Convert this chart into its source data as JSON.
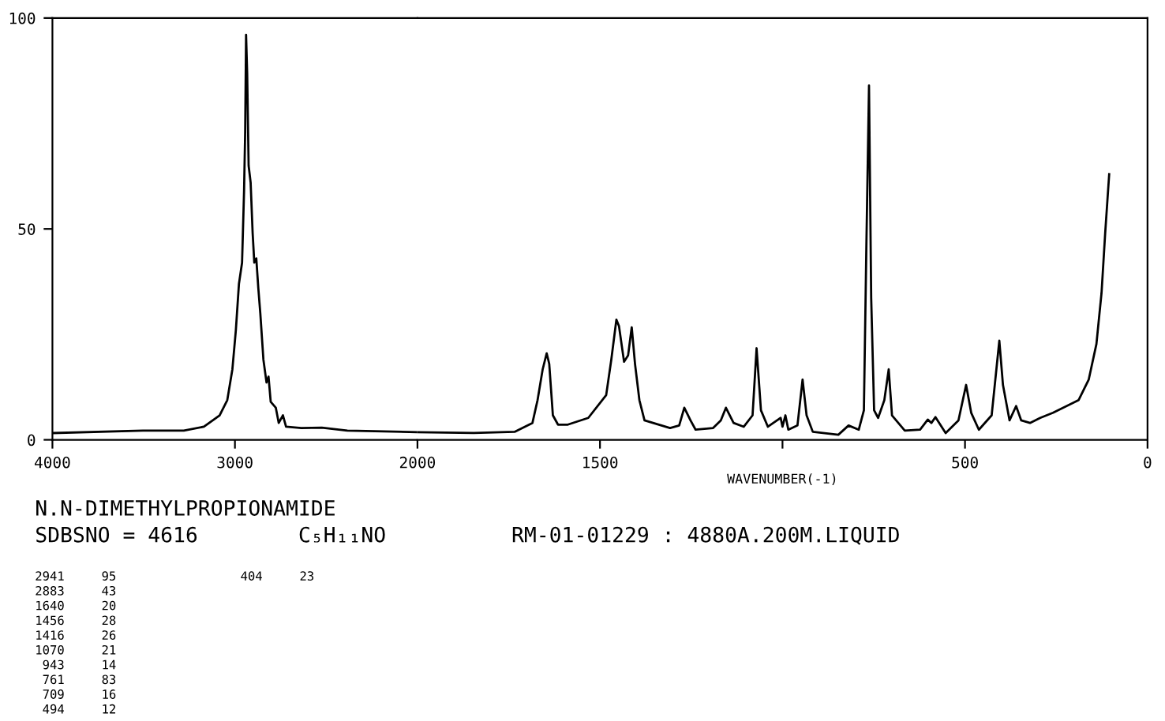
{
  "chart_data": [
    {
      "type": "line",
      "title": "N.N-DIMETHYLPROPIONAMIDE",
      "subtitle": "SDBSNO = 4616        C₅H₁₁NO          RM-01-01229 : 4880A.200M.LIQUID",
      "xlim": [
        4000,
        2000
      ],
      "xticks": [
        4000,
        3000,
        2000
      ],
      "ylim": [
        0,
        100
      ],
      "yticks": [
        0,
        50,
        100
      ],
      "grid": false,
      "legend": false,
      "marker": "none",
      "line_style": "solid",
      "annotations": [
        "2941     95",
        "2883     43",
        "1640     20",
        "1456     28",
        "1416     26",
        "1070     21",
        " 943     14",
        " 761     83",
        " 709     16",
        " 494     12",
        " 404     23"
      ],
      "series": [
        {
          "color": "#000000",
          "x": [
            4000,
            3504,
            3280,
            3170,
            3084,
            3042,
            3014,
            2995,
            2978,
            2961,
            2950,
            2944,
            2939,
            2933,
            2925,
            2914,
            2903,
            2894,
            2883,
            2872,
            2861,
            2844,
            2827,
            2816,
            2804,
            2776,
            2760,
            2737,
            2720,
            2636,
            2524,
            2384,
            2000
          ],
          "values": [
            1.6,
            2.2,
            2.2,
            3.1,
            5.8,
            9.4,
            16.7,
            26,
            37,
            42,
            59,
            73,
            96,
            87,
            65,
            61,
            49,
            42,
            43,
            36,
            30,
            19,
            13.6,
            15,
            9,
            7.6,
            4,
            5.8,
            3.1,
            2.8,
            2.9,
            2.2,
            1.8
          ]
        }
      ]
    },
    {
      "type": "line",
      "xlabel": "WAVENUMBER(-1)",
      "xlim": [
        2000,
        0
      ],
      "xticks": [
        1500,
        {
          "value": 1000,
          "label": null
        },
        500,
        0
      ],
      "ylim": [
        0,
        100
      ],
      "tick_labels": "x",
      "grid": false,
      "legend": false,
      "marker": "none",
      "line_style": "solid",
      "series": [
        {
          "color": "#000000",
          "x": [
            2000,
            1846,
            1734,
            1685,
            1671,
            1657,
            1646,
            1639,
            1629,
            1615,
            1588,
            1532,
            1483,
            1469,
            1455,
            1448,
            1434,
            1423,
            1413,
            1404,
            1392,
            1378,
            1308,
            1283,
            1269,
            1252,
            1238,
            1190,
            1169,
            1155,
            1134,
            1106,
            1082,
            1071,
            1059,
            1040,
            1015,
            1005,
            1000,
            992,
            984,
            959,
            945,
            934,
            917,
            847,
            819,
            791,
            777,
            770,
            763,
            757,
            749,
            738,
            721,
            709,
            700,
            665,
            623,
            602,
            592,
            581,
            553,
            518,
            497,
            483,
            462,
            427,
            406,
            396,
            378,
            360,
            346,
            322,
            294,
            259,
            189,
            161,
            140,
            126,
            116,
            105
          ],
          "values": [
            1.8,
            1.6,
            1.9,
            4,
            9.4,
            16.7,
            20.5,
            18,
            5.8,
            3.6,
            3.6,
            5.2,
            10.6,
            19,
            28.5,
            27,
            18.5,
            20,
            26.7,
            18,
            9.4,
            4.6,
            2.8,
            3.4,
            7.6,
            4.6,
            2.4,
            2.8,
            4.6,
            7.6,
            4,
            3.1,
            5.8,
            21.7,
            7,
            3.1,
            4.6,
            5.2,
            3.1,
            5.8,
            2.4,
            3.4,
            14.3,
            5.8,
            1.9,
            1.2,
            3.4,
            2.4,
            7,
            47,
            84,
            33.6,
            7,
            5.2,
            9.4,
            16.7,
            5.8,
            2.2,
            2.4,
            4.8,
            4,
            5.4,
            1.6,
            4.6,
            13,
            6.4,
            2.4,
            5.8,
            23.5,
            13,
            4.6,
            8,
            4.6,
            4,
            5.2,
            6.4,
            9.4,
            14.3,
            22.7,
            34.8,
            49,
            63
          ]
        }
      ]
    }
  ]
}
